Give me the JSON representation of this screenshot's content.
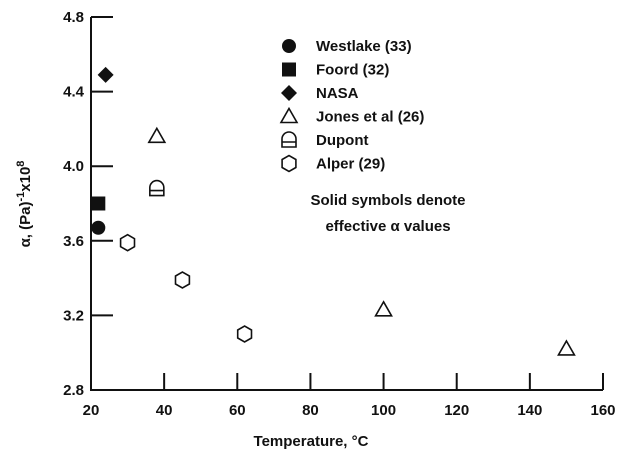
{
  "chart_data": {
    "type": "scatter",
    "title": "",
    "xlabel": "Temperature, °C",
    "ylabel_parts": {
      "base": "α, (Pa)",
      "exp1": "-1",
      "mult": "x10",
      "exp2": "8"
    },
    "xlim": [
      20,
      160
    ],
    "ylim": [
      2.8,
      4.8
    ],
    "xticks": [
      "20",
      "40",
      "60",
      "80",
      "100",
      "120",
      "140",
      "160"
    ],
    "yticks": [
      "2.8",
      "3.2",
      "3.6",
      "4.0",
      "4.4",
      "4.8"
    ],
    "grid": false,
    "legend_position": "top-right",
    "series": [
      {
        "name": "Westlake (33)",
        "marker": "circle-filled",
        "points": [
          [
            22,
            3.67
          ]
        ]
      },
      {
        "name": "Foord (32)",
        "marker": "square-filled",
        "points": [
          [
            22,
            3.8
          ]
        ]
      },
      {
        "name": "NASA",
        "marker": "diamond-filled",
        "points": [
          [
            24,
            4.49
          ]
        ]
      },
      {
        "name": "Jones et al (26)",
        "marker": "triangle-open",
        "points": [
          [
            38,
            4.16
          ],
          [
            100,
            3.23
          ],
          [
            150,
            3.02
          ]
        ]
      },
      {
        "name": "Dupont",
        "marker": "dshape-open",
        "points": [
          [
            38,
            3.88
          ]
        ]
      },
      {
        "name": "Alper (29)",
        "marker": "hexagon-open",
        "points": [
          [
            30,
            3.59
          ],
          [
            45,
            3.39
          ],
          [
            62,
            3.1
          ]
        ]
      }
    ],
    "annotation_lines": [
      "Solid symbols denote",
      "effective α values"
    ]
  }
}
